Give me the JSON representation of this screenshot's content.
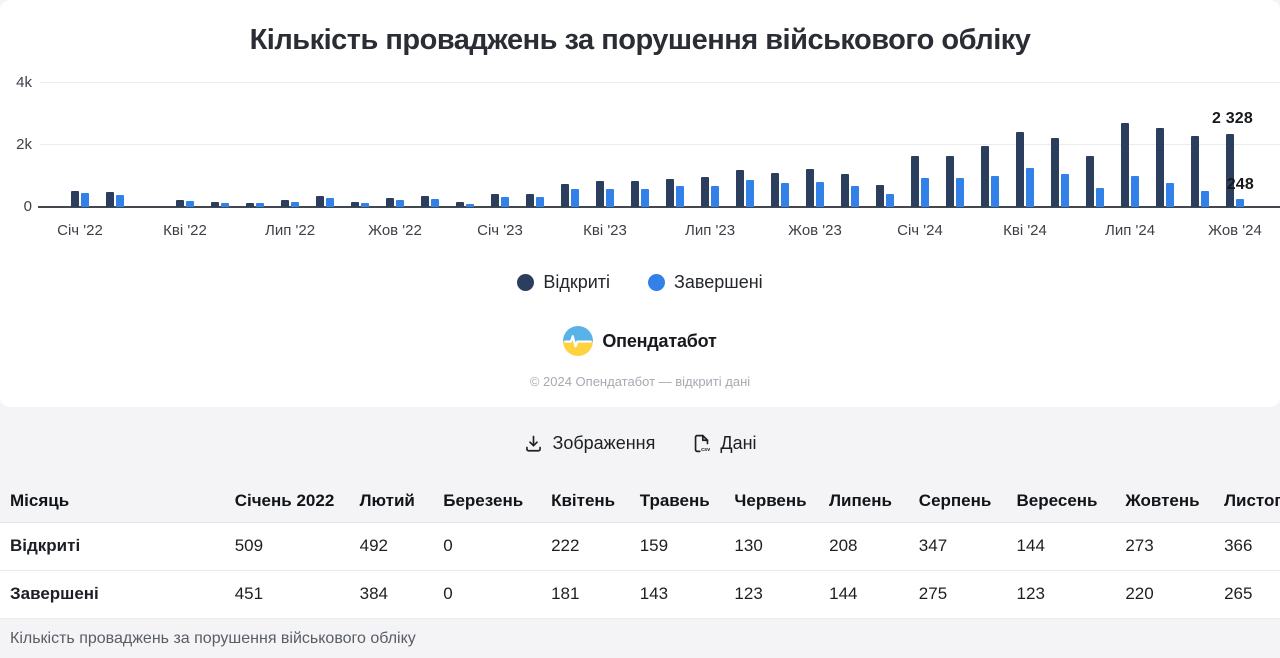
{
  "title": "Кількість проваджень за порушення військового обліку",
  "chart_data": {
    "type": "bar",
    "title": "Кількість проваджень за порушення військового обліку",
    "months_count": 34,
    "x_tick_labels": [
      "Січ '22",
      "Кві '22",
      "Лип '22",
      "Жов '22",
      "Січ '23",
      "Кві '23",
      "Лип '23",
      "Жов '23",
      "Січ '24",
      "Кві '24",
      "Лип '24",
      "Жов '24"
    ],
    "tick_every": 3,
    "y_ticks": [
      "4k",
      "2k",
      "0"
    ],
    "ylim": [
      0,
      4000
    ],
    "grid": "horizontal",
    "legend_position": "bottom",
    "series": [
      {
        "name": "Відкриті",
        "color": "#2c3e5d",
        "values": [
          509,
          492,
          0,
          222,
          159,
          130,
          208,
          347,
          144,
          273,
          366,
          150,
          420,
          430,
          750,
          840,
          830,
          890,
          960,
          1170,
          1100,
          1200,
          1050,
          710,
          1630,
          1640,
          1950,
          2400,
          2220,
          1620,
          2680,
          2520,
          2280,
          2328
        ]
      },
      {
        "name": "Завершені",
        "color": "#3181e8",
        "values": [
          451,
          384,
          0,
          181,
          143,
          123,
          144,
          275,
          123,
          220,
          265,
          110,
          310,
          330,
          590,
          590,
          570,
          670,
          680,
          850,
          760,
          810,
          680,
          420,
          920,
          930,
          990,
          1260,
          1040,
          610,
          990,
          780,
          500,
          248
        ]
      }
    ],
    "annotations": [
      {
        "text": "2 328",
        "series": "Відкриті",
        "month_index": 33
      },
      {
        "text": "248",
        "series": "Завершені",
        "month_index": 33
      }
    ]
  },
  "legend": {
    "items": [
      {
        "label": "Відкриті",
        "color": "#2c3e5d"
      },
      {
        "label": "Завершені",
        "color": "#3181e8"
      }
    ]
  },
  "brand": {
    "name": "Опендатабот"
  },
  "copyright": "© 2024 Опендатабот — відкриті дані",
  "actions": {
    "image_button": "Зображення",
    "data_button": "Дані"
  },
  "table": {
    "columns": [
      "Місяць",
      "Січень 2022",
      "Лютий",
      "Березень",
      "Квітень",
      "Травень",
      "Червень",
      "Липень",
      "Серпень",
      "Вересень",
      "Жовтень",
      "Листопад"
    ],
    "rows": [
      {
        "label": "Відкриті",
        "values": [
          "509",
          "492",
          "0",
          "222",
          "159",
          "130",
          "208",
          "347",
          "144",
          "273",
          "366"
        ]
      },
      {
        "label": "Завершені",
        "values": [
          "451",
          "384",
          "0",
          "181",
          "143",
          "123",
          "144",
          "275",
          "123",
          "220",
          "265"
        ]
      }
    ]
  },
  "caption": "Кількість проваджень за порушення військового обліку",
  "colors": {
    "open": "#2c3e5d",
    "done": "#3181e8",
    "axis": "#43474e",
    "grid": "#ececee",
    "page_bg": "#f4f4f6"
  }
}
